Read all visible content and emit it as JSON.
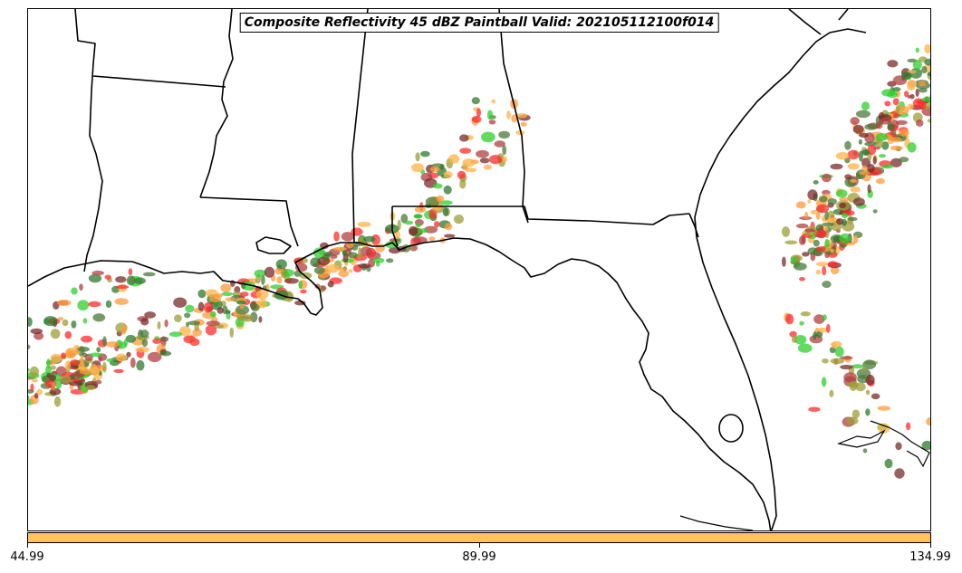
{
  "title": "Composite Reflectivity 45 dBZ Paintball Valid: 202105112100f014",
  "colorbar": {
    "color": "#ffc25e",
    "ticks": [
      "44.99",
      "89.99",
      "134.99"
    ]
  },
  "palette": [
    "#ff2b2b",
    "#2fcf2f",
    "#9e9e3a",
    "#ff9b3a",
    "#7a2b2b",
    "#2f7a2f",
    "#ffb347",
    "#b04040",
    "#4a7a3a"
  ]
}
